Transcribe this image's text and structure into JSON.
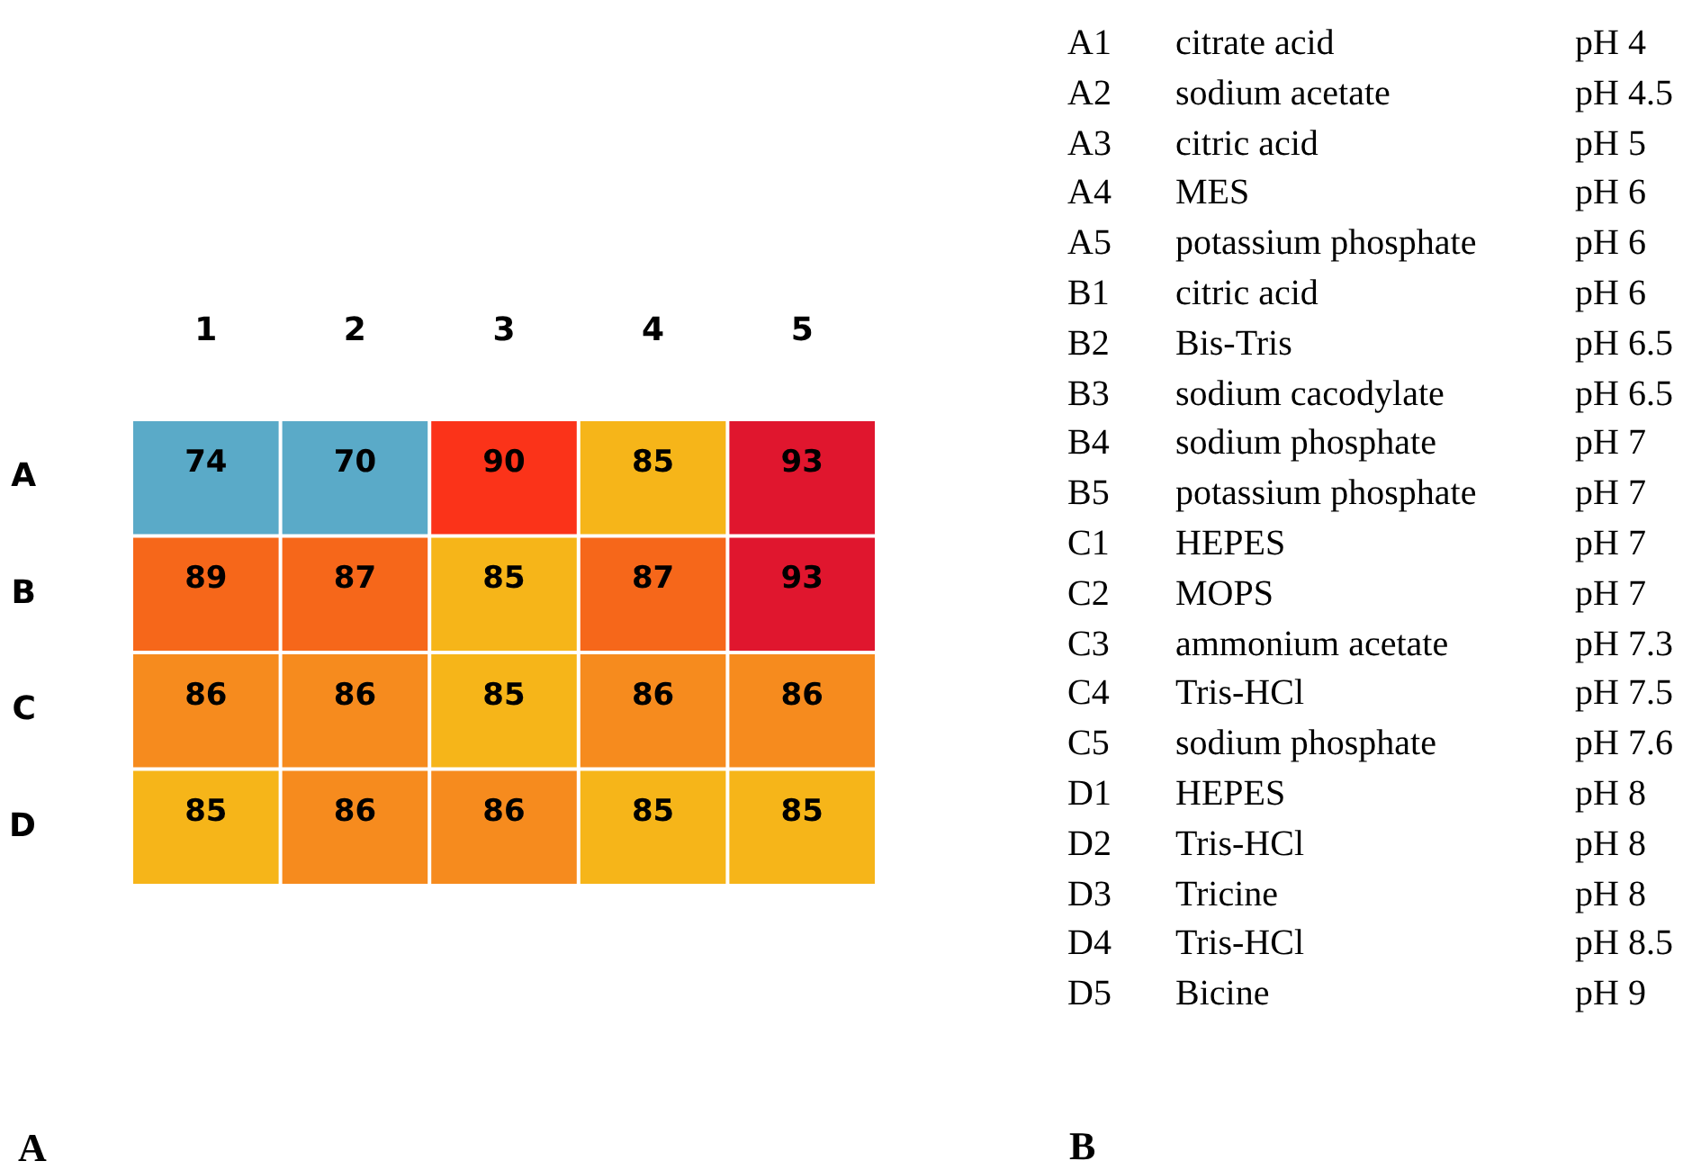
{
  "chart_data": [
    {
      "type": "heatmap",
      "categories": [
        "1",
        "2",
        "3",
        "4",
        "5"
      ],
      "y_categories": [
        "A",
        "B",
        "C",
        "D"
      ],
      "cells": [
        [
          74,
          70,
          90,
          85,
          93
        ],
        [
          89,
          87,
          85,
          87,
          93
        ],
        [
          86,
          86,
          85,
          86,
          86
        ],
        [
          85,
          86,
          86,
          85,
          85
        ]
      ],
      "colors": [
        [
          "#5aaac8",
          "#5aaac8",
          "#fb3319",
          "#f6b519",
          "#e0162e"
        ],
        [
          "#f6671a",
          "#f6671a",
          "#f6b519",
          "#f6671a",
          "#e0162e"
        ],
        [
          "#f68b1e",
          "#f68b1e",
          "#f6b519",
          "#f68b1e",
          "#f68b1e"
        ],
        [
          "#f6b519",
          "#f68b1e",
          "#f68b1e",
          "#f6b519",
          "#f6b519"
        ]
      ],
      "data_labels": true,
      "annotations": [
        "A"
      ]
    },
    {
      "type": "other",
      "cell_labels": [
        [
          "A1",
          "citrate acid",
          "pH 4"
        ],
        [
          "A2",
          "sodium acetate",
          "pH 4.5"
        ],
        [
          "A3",
          "citric acid",
          "pH 5"
        ],
        [
          "A4",
          "MES",
          "pH 6"
        ],
        [
          "A5",
          "potassium phosphate",
          "pH 6"
        ],
        [
          "B1",
          "citric acid",
          "pH 6"
        ],
        [
          "B2",
          "Bis-Tris",
          "pH 6.5"
        ],
        [
          "B3",
          "sodium cacodylate",
          "pH 6.5"
        ],
        [
          "B4",
          "sodium phosphate",
          "pH 7"
        ],
        [
          "B5",
          "potassium phosphate",
          "pH 7"
        ],
        [
          "C1",
          "HEPES",
          "pH 7"
        ],
        [
          "C2",
          "MOPS",
          "pH 7"
        ],
        [
          "C3",
          "ammonium acetate",
          "pH 7.3"
        ],
        [
          "C4",
          "Tris-HCl",
          "pH 7.5"
        ],
        [
          "C5",
          "sodium phosphate",
          "pH 7.6"
        ],
        [
          "D1",
          "HEPES",
          "pH 8"
        ],
        [
          "D2",
          "Tris-HCl",
          "pH 8"
        ],
        [
          "D3",
          "Tricine",
          "pH 8"
        ],
        [
          "D4",
          "Tris-HCl",
          "pH 8.5"
        ],
        [
          "D5",
          "Bicine",
          "pH 9"
        ]
      ],
      "annotations": [
        "B"
      ]
    }
  ]
}
